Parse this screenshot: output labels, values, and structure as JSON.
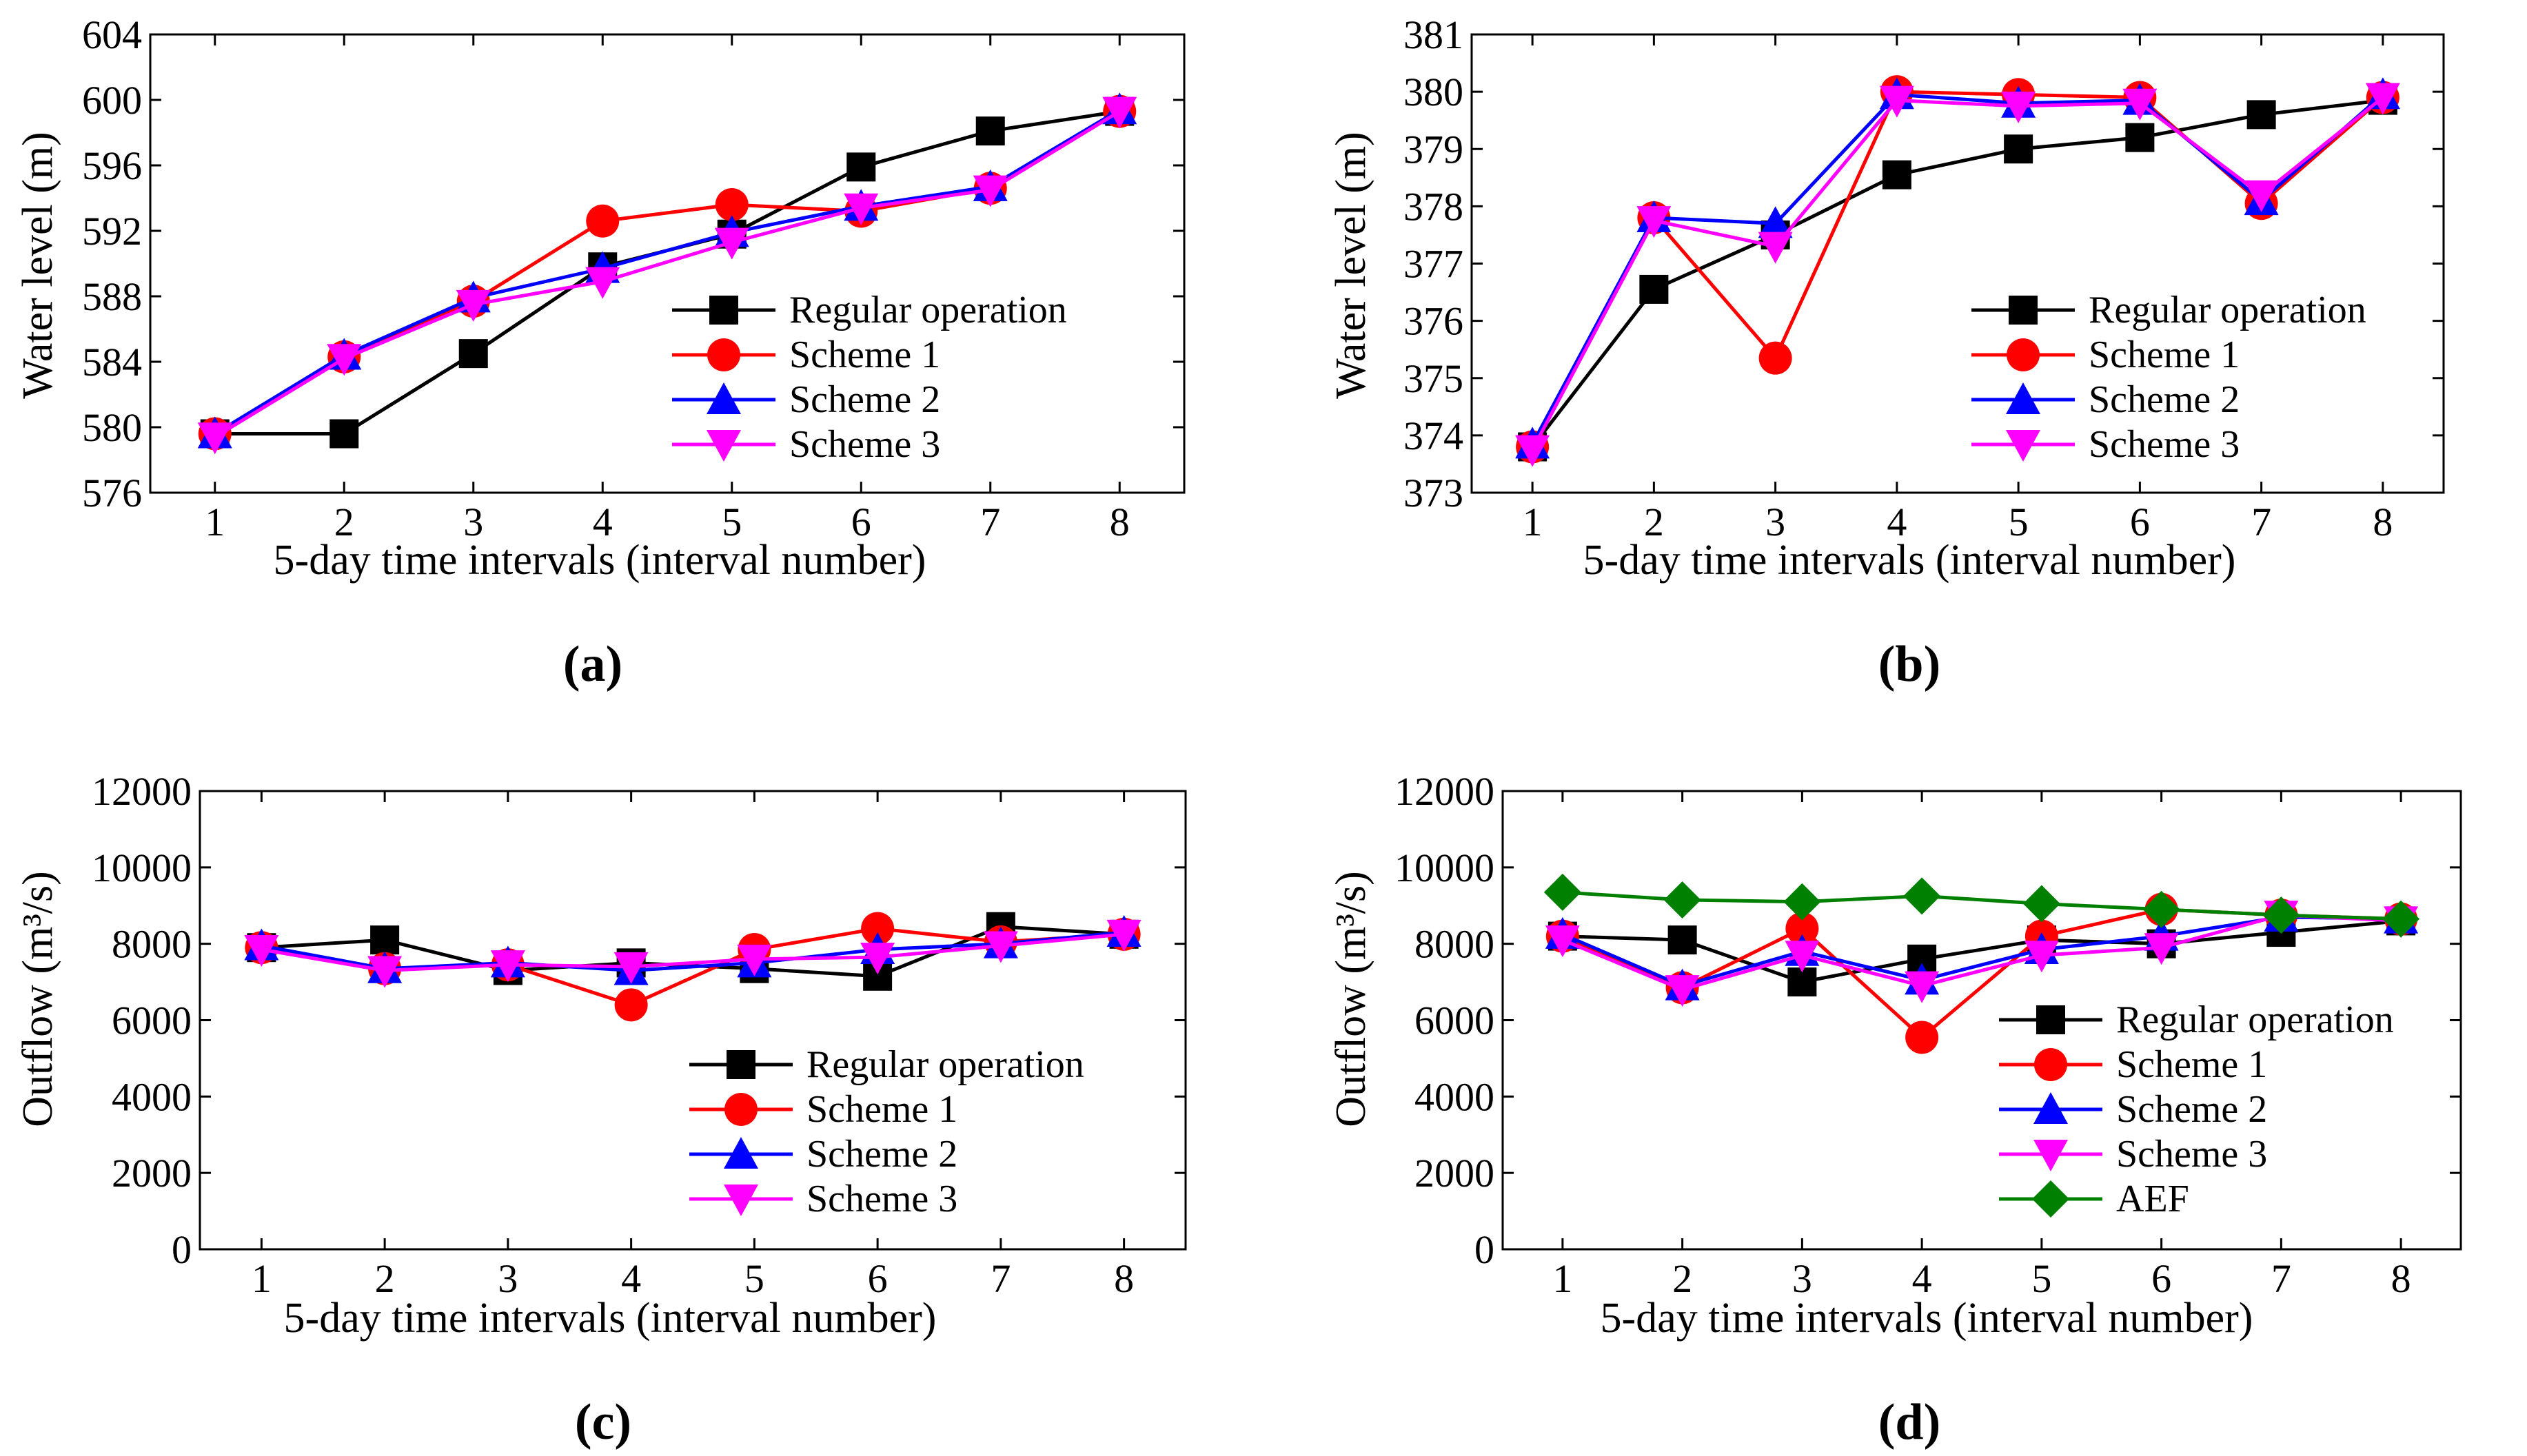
{
  "styles": {
    "Regular operation": {
      "color": "#000000",
      "marker": "square"
    },
    "Scheme 1": {
      "color": "#ff0000",
      "marker": "circle"
    },
    "Scheme 2": {
      "color": "#0000ff",
      "marker": "triangle-up"
    },
    "Scheme 3": {
      "color": "#ff00ff",
      "marker": "triangle-down"
    },
    "AEF": {
      "color": "#008000",
      "marker": "diamond"
    }
  },
  "chart_data": [
    {
      "type": "line",
      "panel_label": "(a)",
      "xlabel": "5-day time intervals (interval number)",
      "ylabel": "Water level (m)",
      "x": [
        1,
        2,
        3,
        4,
        5,
        6,
        7,
        8
      ],
      "xticks": [
        "1",
        "2",
        "3",
        "4",
        "5",
        "6",
        "7",
        "8"
      ],
      "ylim": [
        576,
        604
      ],
      "yticks": [
        576,
        580,
        584,
        588,
        592,
        596,
        600,
        604
      ],
      "legend_position": "lower-right",
      "series": [
        {
          "name": "Regular operation",
          "values": [
            579.6,
            579.6,
            584.5,
            589.8,
            591.8,
            595.9,
            598.1,
            599.3
          ]
        },
        {
          "name": "Scheme 1",
          "values": [
            579.6,
            584.3,
            587.7,
            592.6,
            593.6,
            593.2,
            594.6,
            599.3
          ]
        },
        {
          "name": "Scheme 2",
          "values": [
            579.6,
            584.4,
            587.9,
            589.7,
            591.9,
            593.5,
            594.7,
            599.4
          ]
        },
        {
          "name": "Scheme 3",
          "values": [
            579.4,
            584.2,
            587.5,
            588.9,
            591.3,
            593.4,
            594.5,
            599.3
          ]
        }
      ]
    },
    {
      "type": "line",
      "panel_label": "(b)",
      "xlabel": "5-day time intervals (interval number)",
      "ylabel": "Water level (m)",
      "x": [
        1,
        2,
        3,
        4,
        5,
        6,
        7,
        8
      ],
      "xticks": [
        "1",
        "2",
        "3",
        "4",
        "5",
        "6",
        "7",
        "8"
      ],
      "ylim": [
        373,
        381
      ],
      "yticks": [
        373,
        374,
        375,
        376,
        377,
        378,
        379,
        380,
        381
      ],
      "legend_position": "lower-right",
      "series": [
        {
          "name": "Regular operation",
          "values": [
            373.8,
            376.55,
            377.5,
            378.55,
            379.0,
            379.2,
            379.6,
            379.85
          ]
        },
        {
          "name": "Scheme 1",
          "values": [
            373.8,
            377.8,
            375.35,
            380.0,
            379.95,
            379.9,
            378.05,
            379.9
          ]
        },
        {
          "name": "Scheme 2",
          "values": [
            373.85,
            377.8,
            377.7,
            379.95,
            379.8,
            379.85,
            378.1,
            379.95
          ]
        },
        {
          "name": "Scheme 3",
          "values": [
            373.75,
            377.75,
            377.3,
            379.85,
            379.75,
            379.8,
            378.2,
            379.9
          ]
        }
      ]
    },
    {
      "type": "line",
      "panel_label": "(c)",
      "xlabel": "5-day time intervals (interval number)",
      "ylabel": "Outflow (m³/s)",
      "x": [
        1,
        2,
        3,
        4,
        5,
        6,
        7,
        8
      ],
      "xticks": [
        "1",
        "2",
        "3",
        "4",
        "5",
        "6",
        "7",
        "8"
      ],
      "ylim": [
        0,
        12000
      ],
      "yticks": [
        0,
        2000,
        4000,
        6000,
        8000,
        10000,
        12000
      ],
      "legend_position": "lower-right",
      "series": [
        {
          "name": "Regular operation",
          "values": [
            7900,
            8100,
            7300,
            7500,
            7350,
            7150,
            8450,
            8250
          ]
        },
        {
          "name": "Scheme 1",
          "values": [
            7900,
            7350,
            7450,
            6400,
            7850,
            8400,
            8050,
            8250
          ]
        },
        {
          "name": "Scheme 2",
          "values": [
            7950,
            7350,
            7500,
            7300,
            7500,
            7850,
            8000,
            8300
          ]
        },
        {
          "name": "Scheme 3",
          "values": [
            7850,
            7300,
            7450,
            7400,
            7600,
            7650,
            7950,
            8250
          ]
        }
      ]
    },
    {
      "type": "line",
      "panel_label": "(d)",
      "xlabel": "5-day time intervals (interval number)",
      "ylabel": "Outflow (m³/s)",
      "x": [
        1,
        2,
        3,
        4,
        5,
        6,
        7,
        8
      ],
      "xticks": [
        "1",
        "2",
        "3",
        "4",
        "5",
        "6",
        "7",
        "8"
      ],
      "ylim": [
        0,
        12000
      ],
      "yticks": [
        0,
        2000,
        4000,
        6000,
        8000,
        10000,
        12000
      ],
      "legend_position": "lower-right",
      "series": [
        {
          "name": "Regular operation",
          "values": [
            8200,
            8100,
            7000,
            7600,
            8100,
            8000,
            8300,
            8600
          ]
        },
        {
          "name": "Scheme 1",
          "values": [
            8200,
            6850,
            8400,
            5550,
            8200,
            8900,
            8750,
            8650
          ]
        },
        {
          "name": "Scheme 2",
          "values": [
            8250,
            6900,
            7800,
            7050,
            7850,
            8200,
            8700,
            8650
          ]
        },
        {
          "name": "Scheme 3",
          "values": [
            8100,
            6800,
            7700,
            6900,
            7700,
            7900,
            8750,
            8600
          ]
        },
        {
          "name": "AEF",
          "values": [
            9350,
            9150,
            9100,
            9250,
            9050,
            8900,
            8750,
            8650
          ]
        }
      ]
    }
  ]
}
